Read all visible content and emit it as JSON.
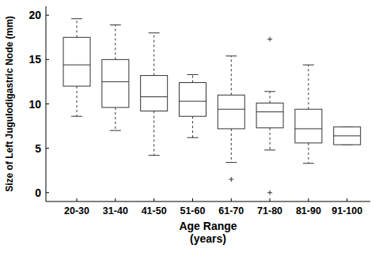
{
  "chart_data": {
    "type": "box",
    "y_label": "Size of Left Jugulodigastric Node (mm)",
    "x_label": "Age Range\n(years)",
    "categories": [
      "20-30",
      "31-40",
      "41-50",
      "51-60",
      "61-70",
      "71-80",
      "81-90",
      "91-100"
    ],
    "boxes": [
      {
        "min": 8.6,
        "q1": 12.0,
        "median": 14.4,
        "q3": 17.5,
        "max": 19.6,
        "outliers": []
      },
      {
        "min": 7.0,
        "q1": 9.6,
        "median": 12.5,
        "q3": 15.0,
        "max": 18.9,
        "outliers": []
      },
      {
        "min": 4.2,
        "q1": 9.2,
        "median": 10.8,
        "q3": 13.2,
        "max": 18.0,
        "outliers": []
      },
      {
        "min": 6.2,
        "q1": 8.6,
        "median": 10.3,
        "q3": 12.4,
        "max": 13.3,
        "outliers": []
      },
      {
        "min": 3.4,
        "q1": 7.2,
        "median": 9.4,
        "q3": 11.0,
        "max": 15.4,
        "outliers": [
          1.5
        ]
      },
      {
        "min": 4.8,
        "q1": 7.3,
        "median": 9.1,
        "q3": 10.1,
        "max": 11.4,
        "outliers": [
          17.3,
          0
        ]
      },
      {
        "min": 3.3,
        "q1": 5.6,
        "median": 7.2,
        "q3": 9.4,
        "max": 14.4,
        "outliers": []
      },
      {
        "min": 5.4,
        "q1": 5.4,
        "median": 6.4,
        "q3": 7.4,
        "max": 7.4,
        "outliers": []
      }
    ],
    "color": "#333333",
    "marker": "plus",
    "ylim": [
      -1,
      21
    ],
    "yticks": [
      0,
      5,
      10,
      15,
      20
    ],
    "grid": false
  }
}
